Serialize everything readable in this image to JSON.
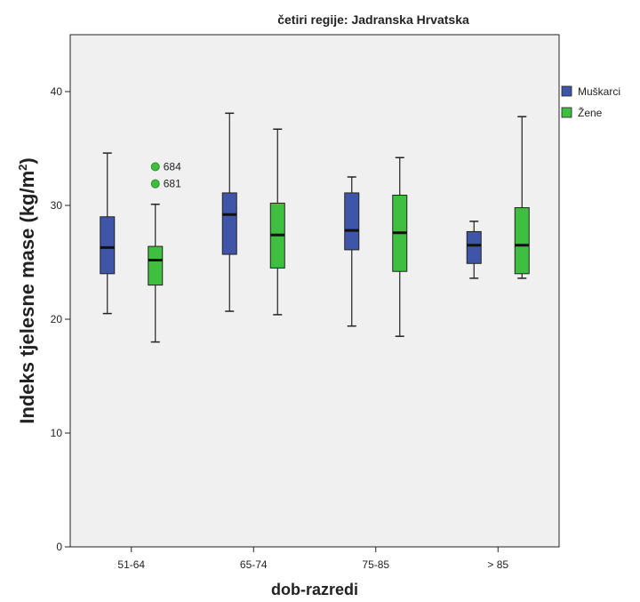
{
  "chart_data": {
    "type": "boxplot",
    "title": "četiri regije: Jadranska Hrvatska",
    "xlabel": "dob-razredi",
    "ylabel": "Indeks tjelesne mase (kg/m²)",
    "ylabel_main": "Indeks tjelesne mase (kg/m",
    "ylabel_sup": "2",
    "ylabel_end": ")",
    "ylim": [
      0,
      45
    ],
    "yticks": [
      0,
      10,
      20,
      30,
      40
    ],
    "grid": false,
    "legend_position": "top-right, outside plot",
    "categories": [
      "51-64",
      "65-74",
      "75-85",
      "> 85"
    ],
    "series": [
      {
        "name": "Muškarci",
        "color": "#3f55a8",
        "boxes": [
          {
            "min": 20.5,
            "q1": 24.0,
            "median": 26.3,
            "q3": 29.0,
            "max": 34.6,
            "outliers": []
          },
          {
            "min": 20.7,
            "q1": 25.7,
            "median": 29.2,
            "q3": 31.1,
            "max": 38.1,
            "outliers": []
          },
          {
            "min": 19.4,
            "q1": 26.1,
            "median": 27.8,
            "q3": 31.1,
            "max": 32.5,
            "outliers": []
          },
          {
            "min": 23.6,
            "q1": 24.9,
            "median": 26.5,
            "q3": 27.7,
            "max": 28.6,
            "outliers": []
          }
        ]
      },
      {
        "name": "Žene",
        "color": "#3fbf3f",
        "boxes": [
          {
            "min": 18.0,
            "q1": 23.0,
            "median": 25.2,
            "q3": 26.4,
            "max": 30.1,
            "outliers": [
              {
                "value": 33.4,
                "label": "684"
              },
              {
                "value": 31.9,
                "label": "681"
              }
            ]
          },
          {
            "min": 20.4,
            "q1": 24.5,
            "median": 27.4,
            "q3": 30.2,
            "max": 36.7,
            "outliers": []
          },
          {
            "min": 18.5,
            "q1": 24.2,
            "median": 27.6,
            "q3": 30.9,
            "max": 34.2,
            "outliers": []
          },
          {
            "min": 23.6,
            "q1": 24.0,
            "median": 26.5,
            "q3": 29.8,
            "max": 37.8,
            "outliers": []
          }
        ]
      }
    ]
  }
}
